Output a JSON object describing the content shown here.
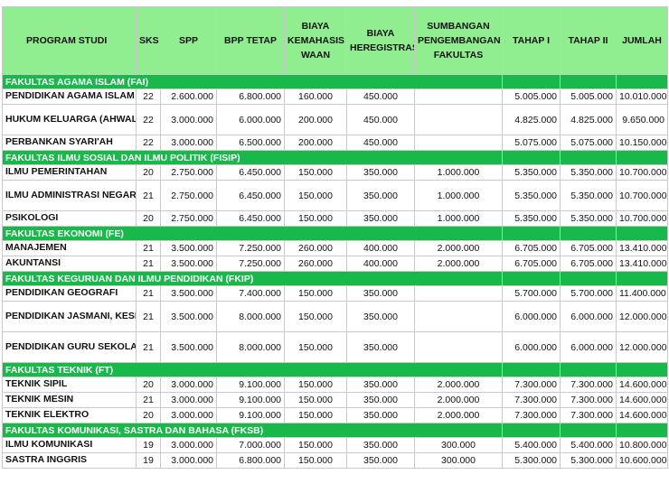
{
  "headers": {
    "program": "PROGRAM STUDI",
    "sks": "SKS",
    "spp": "SPP",
    "bpp": "BPP TETAP",
    "kemahasiswaan": "BIAYA KEMAHASIS WAAN",
    "heregistrasi": "BIAYA HEREGISTRASI",
    "sumbangan": "SUMBANGAN PENGEMBANGAN FAKULTAS",
    "tahap1": "TAHAP I",
    "tahap2": "TAHAP II",
    "jumlah": "JUMLAH"
  },
  "faculties": [
    {
      "name": "FAKULTAS AGAMA ISLAM (FAI)",
      "programs": [
        {
          "name": "PENDIDIKAN AGAMA ISLAM",
          "sks": "22",
          "spp": "2.600.000",
          "bpp": "6.800.000",
          "kemahasiswaan": "160.000",
          "heregistrasi": "450.000",
          "sumbangan": "",
          "tahap1": "5.005.000",
          "tahap2": "5.005.000",
          "jumlah": "10.010.000"
        },
        {
          "name": "HUKUM KELUARGA (AHWAL SYAKHSHIYAH)",
          "sks": "22",
          "spp": "3.000.000",
          "bpp": "6.000.000",
          "kemahasiswaan": "200.000",
          "heregistrasi": "450.000",
          "sumbangan": "",
          "tahap1": "4.825.000",
          "tahap2": "4.825.000",
          "jumlah": "9.650.000"
        },
        {
          "name": "PERBANKAN SYARI'AH",
          "sks": "22",
          "spp": "3.000.000",
          "bpp": "6.500.000",
          "kemahasiswaan": "200.000",
          "heregistrasi": "450.000",
          "sumbangan": "",
          "tahap1": "5.075.000",
          "tahap2": "5.075.000",
          "jumlah": "10.150.000"
        }
      ]
    },
    {
      "name": "FAKULTAS ILMU SOSIAL DAN ILMU POLITIK (FISIP)",
      "programs": [
        {
          "name": "ILMU PEMERINTAHAN",
          "sks": "20",
          "spp": "2.750.000",
          "bpp": "6.450.000",
          "kemahasiswaan": "150.000",
          "heregistrasi": "350.000",
          "sumbangan": "1.000.000",
          "tahap1": "5.350.000",
          "tahap2": "5.350.000",
          "jumlah": "10.700.000"
        },
        {
          "name": "ILMU ADMINISTRASI NEGARA",
          "sks": "21",
          "spp": "2.750.000",
          "bpp": "6.450.000",
          "kemahasiswaan": "150.000",
          "heregistrasi": "350.000",
          "sumbangan": "1.000.000",
          "tahap1": "5.350.000",
          "tahap2": "5.350.000",
          "jumlah": "10.700.000"
        },
        {
          "name": "PSIKOLOGI",
          "sks": "20",
          "spp": "2.750.000",
          "bpp": "6.450.000",
          "kemahasiswaan": "150.000",
          "heregistrasi": "350.000",
          "sumbangan": "1.000.000",
          "tahap1": "5.350.000",
          "tahap2": "5.350.000",
          "jumlah": "10.700.000"
        }
      ]
    },
    {
      "name": "FAKULTAS EKONOMI (FE)",
      "programs": [
        {
          "name": "MANAJEMEN",
          "sks": "21",
          "spp": "3.500.000",
          "bpp": "7.250.000",
          "kemahasiswaan": "260.000",
          "heregistrasi": "400.000",
          "sumbangan": "2.000.000",
          "tahap1": "6.705.000",
          "tahap2": "6.705.000",
          "jumlah": "13.410.000"
        },
        {
          "name": "AKUNTANSI",
          "sks": "21",
          "spp": "3.500.000",
          "bpp": "7.250.000",
          "kemahasiswaan": "260.000",
          "heregistrasi": "400.000",
          "sumbangan": "2.000.000",
          "tahap1": "6.705.000",
          "tahap2": "6.705.000",
          "jumlah": "13.410.000"
        }
      ]
    },
    {
      "name": "FAKULTAS KEGURUAN DAN ILMU PENDIDIKAN (FKIP)",
      "programs": [
        {
          "name": "PENDIDIKAN GEOGRAFI",
          "sks": "21",
          "spp": "3.500.000",
          "bpp": "7.400.000",
          "kemahasiswaan": "150.000",
          "heregistrasi": "350.000",
          "sumbangan": "",
          "tahap1": "5.700.000",
          "tahap2": "5.700.000",
          "jumlah": "11.400.000"
        },
        {
          "name": "PENDIDIKAN JASMANI, KESEHATAN DAN REKREASI",
          "sks": "21",
          "spp": "3.500.000",
          "bpp": "8.000.000",
          "kemahasiswaan": "150.000",
          "heregistrasi": "350.000",
          "sumbangan": "",
          "tahap1": "6.000.000",
          "tahap2": "6.000.000",
          "jumlah": "12.000.000"
        },
        {
          "name": "PENDIDIKAN GURU SEKOLAH DASAR",
          "sks": "21",
          "spp": "3.500.000",
          "bpp": "8.000.000",
          "kemahasiswaan": "150.000",
          "heregistrasi": "350.000",
          "sumbangan": "",
          "tahap1": "6.000.000",
          "tahap2": "6.000.000",
          "jumlah": "12.000.000"
        }
      ]
    },
    {
      "name": "FAKULTAS TEKNIK (FT)",
      "programs": [
        {
          "name": "TEKNIK SIPIL",
          "sks": "20",
          "spp": "3.000.000",
          "bpp": "9.100.000",
          "kemahasiswaan": "150.000",
          "heregistrasi": "350.000",
          "sumbangan": "2.000.000",
          "tahap1": "7.300.000",
          "tahap2": "7.300.000",
          "jumlah": "14.600.000"
        },
        {
          "name": "TEKNIK MESIN",
          "sks": "21",
          "spp": "3.000.000",
          "bpp": "9.100.000",
          "kemahasiswaan": "150.000",
          "heregistrasi": "350.000",
          "sumbangan": "2.000.000",
          "tahap1": "7.300.000",
          "tahap2": "7.300.000",
          "jumlah": "14.600.000"
        },
        {
          "name": "TEKNIK ELEKTRO",
          "sks": "20",
          "spp": "3.000.000",
          "bpp": "9.100.000",
          "kemahasiswaan": "150.000",
          "heregistrasi": "350.000",
          "sumbangan": "2.000.000",
          "tahap1": "7.300.000",
          "tahap2": "7.300.000",
          "jumlah": "14.600.000"
        }
      ]
    },
    {
      "name": "FAKULTAS KOMUNIKASI, SASTRA DAN BAHASA (FKSB)",
      "programs": [
        {
          "name": "ILMU KOMUNIKASI",
          "sks": "19",
          "spp": "3.000.000",
          "bpp": "7.000.000",
          "kemahasiswaan": "150.000",
          "heregistrasi": "350.000",
          "sumbangan": "300.000",
          "tahap1": "5.400.000",
          "tahap2": "5.400.000",
          "jumlah": "10.800.000"
        },
        {
          "name": "SASTRA INGGRIS",
          "sks": "19",
          "spp": "3.000.000",
          "bpp": "6.800.000",
          "kemahasiswaan": "150.000",
          "heregistrasi": "350.000",
          "sumbangan": "300.000",
          "tahap1": "5.300.000",
          "tahap2": "5.300.000",
          "jumlah": "10.600.000"
        }
      ]
    }
  ],
  "colors": {
    "header_bg": "#90ee90",
    "faculty_bg": "#18b94a",
    "faculty_text": "#ffffff",
    "border": "#c9c9c9"
  }
}
